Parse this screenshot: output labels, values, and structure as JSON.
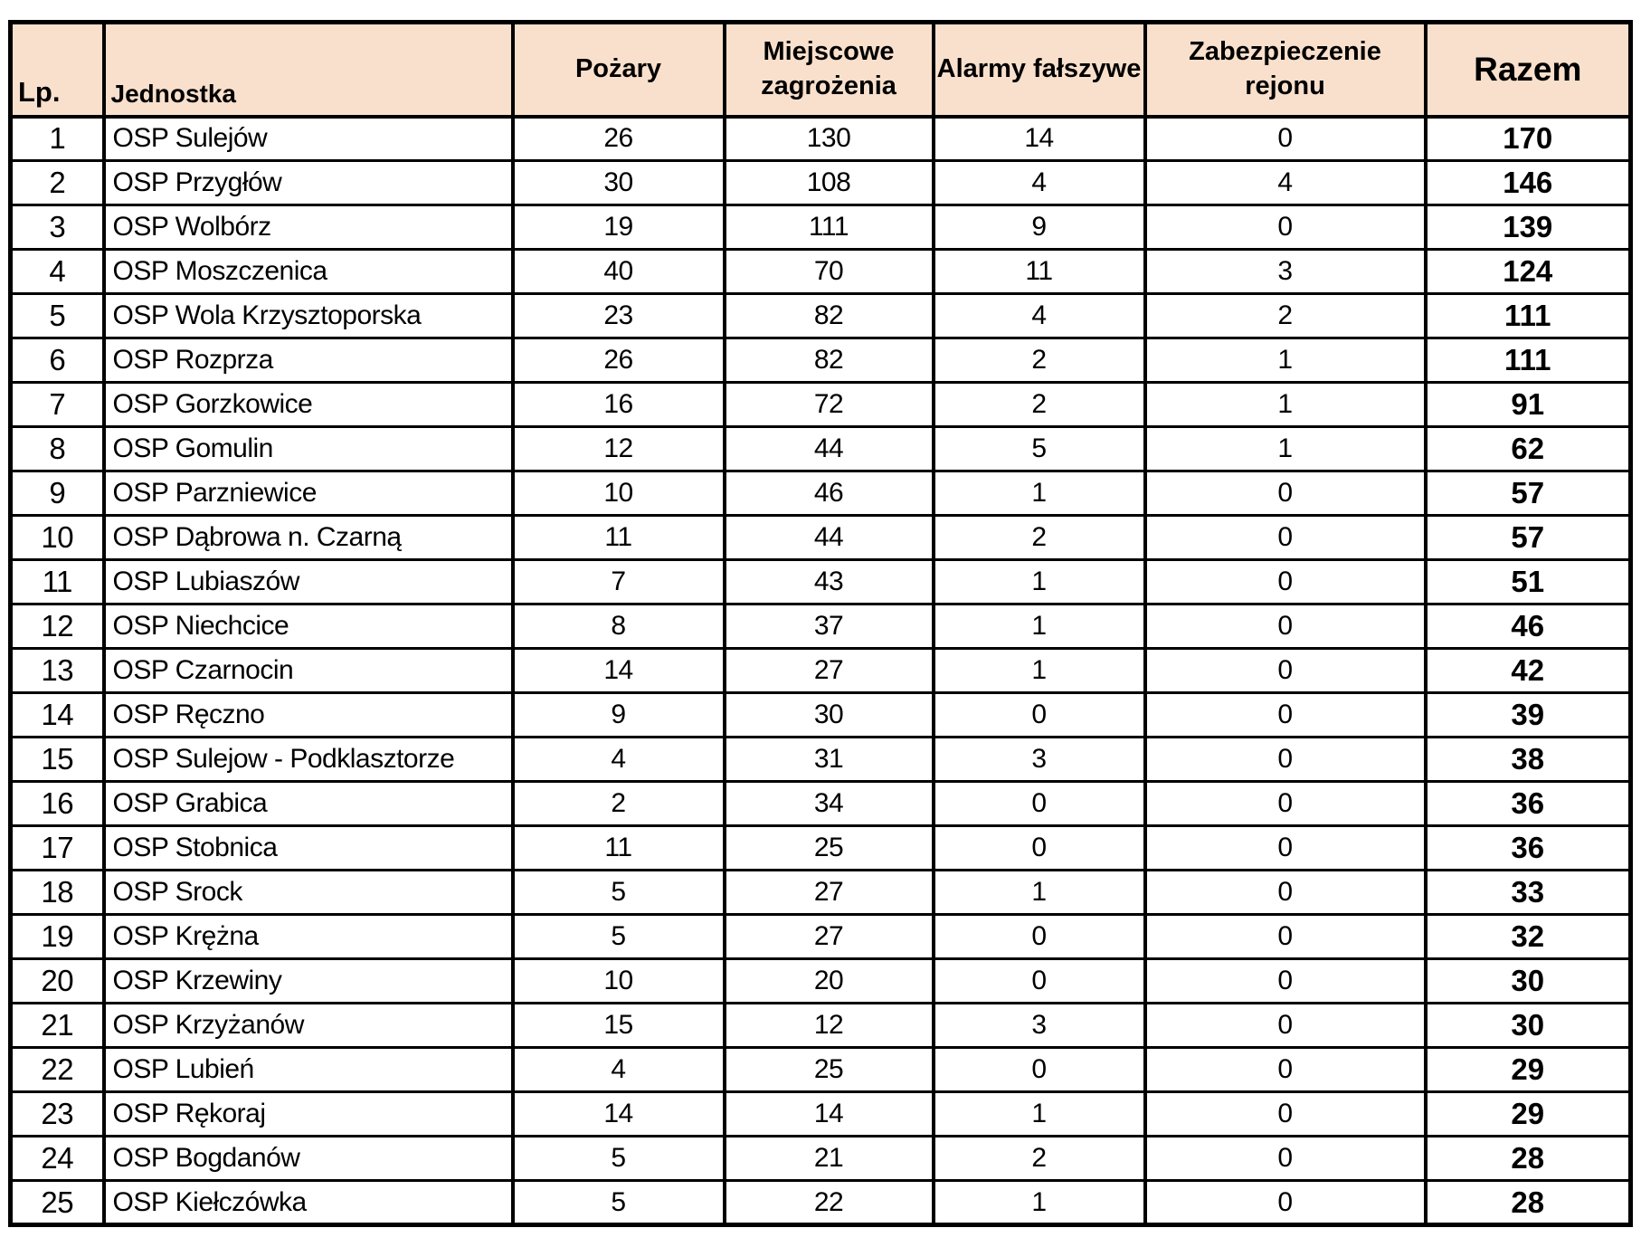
{
  "colors": {
    "header_bg": "#F9E0CC",
    "border": "#000000",
    "row_bg": "#FFFFFF",
    "text": "#000000"
  },
  "table": {
    "columns": [
      {
        "key": "lp",
        "label": "Lp."
      },
      {
        "key": "jednostka",
        "label": "Jednostka"
      },
      {
        "key": "pozary",
        "label": "Pożary"
      },
      {
        "key": "miejscowe",
        "label": "Miejscowe zagrożenia"
      },
      {
        "key": "alarmy",
        "label": "Alarmy fałszywe"
      },
      {
        "key": "zabezpieczenie",
        "label": "Zabezpieczenie rejonu"
      },
      {
        "key": "razem",
        "label": "Razem"
      }
    ],
    "rows": [
      [
        1,
        "OSP Sulejów",
        26,
        130,
        14,
        0,
        170
      ],
      [
        2,
        "OSP Przygłów",
        30,
        108,
        4,
        4,
        146
      ],
      [
        3,
        "OSP Wolbórz",
        19,
        111,
        9,
        0,
        139
      ],
      [
        4,
        "OSP Moszczenica",
        40,
        70,
        11,
        3,
        124
      ],
      [
        5,
        "OSP Wola Krzysztoporska",
        23,
        82,
        4,
        2,
        111
      ],
      [
        6,
        "OSP Rozprza",
        26,
        82,
        2,
        1,
        111
      ],
      [
        7,
        "OSP Gorzkowice",
        16,
        72,
        2,
        1,
        91
      ],
      [
        8,
        "OSP Gomulin",
        12,
        44,
        5,
        1,
        62
      ],
      [
        9,
        "OSP Parzniewice",
        10,
        46,
        1,
        0,
        57
      ],
      [
        10,
        "OSP Dąbrowa n. Czarną",
        11,
        44,
        2,
        0,
        57
      ],
      [
        11,
        "OSP Lubiaszów",
        7,
        43,
        1,
        0,
        51
      ],
      [
        12,
        "OSP Niechcice",
        8,
        37,
        1,
        0,
        46
      ],
      [
        13,
        "OSP Czarnocin",
        14,
        27,
        1,
        0,
        42
      ],
      [
        14,
        "OSP Ręczno",
        9,
        30,
        0,
        0,
        39
      ],
      [
        15,
        "OSP Sulejow - Podklasztorze",
        4,
        31,
        3,
        0,
        38
      ],
      [
        16,
        "OSP Grabica",
        2,
        34,
        0,
        0,
        36
      ],
      [
        17,
        "OSP Stobnica",
        11,
        25,
        0,
        0,
        36
      ],
      [
        18,
        "OSP Srock",
        5,
        27,
        1,
        0,
        33
      ],
      [
        19,
        "OSP Krężna",
        5,
        27,
        0,
        0,
        32
      ],
      [
        20,
        "OSP Krzewiny",
        10,
        20,
        0,
        0,
        30
      ],
      [
        21,
        "OSP Krzyżanów",
        15,
        12,
        3,
        0,
        30
      ],
      [
        22,
        "OSP Lubień",
        4,
        25,
        0,
        0,
        29
      ],
      [
        23,
        "OSP Rękoraj",
        14,
        14,
        1,
        0,
        29
      ],
      [
        24,
        "OSP Bogdanów",
        5,
        21,
        2,
        0,
        28
      ],
      [
        25,
        "OSP Kiełczówka",
        5,
        22,
        1,
        0,
        28
      ]
    ]
  }
}
